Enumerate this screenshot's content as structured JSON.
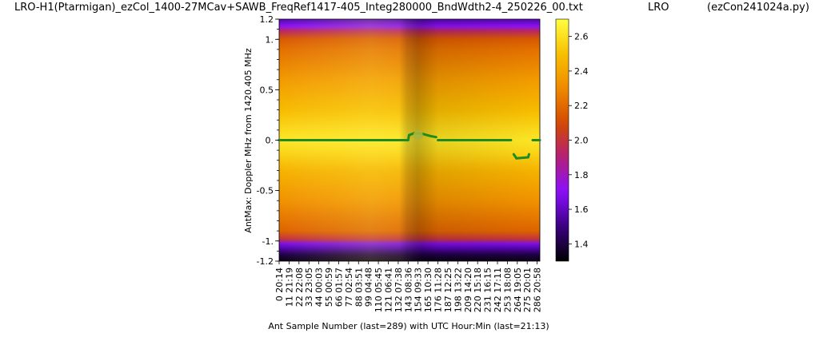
{
  "header": {
    "title": "LRO-H1(Ptarmigan)_ezCol_1400-27MCav+SAWB_FreqRef1417-405_Integ280000_BndWdth2-4_250226_00.txt",
    "site": "LRO",
    "program": "(ezCon241024a.py)"
  },
  "colors": {
    "track": "#1f8a1f",
    "marker": "#a8b43c",
    "colormap": [
      "#000000",
      "#3a0080",
      "#8a10ff",
      "#b41e78",
      "#d24a00",
      "#f08a00",
      "#f8c000",
      "#ffff40"
    ]
  },
  "chart_data": {
    "type": "heatmap",
    "colormap": "gnuplot",
    "ylabel": "AntMax:  Doppler MHz from 1420.405 MHz",
    "xlabel": "Ant Sample Number (last=289) with UTC Hour:Min (last=21:13)",
    "xlim": [
      0,
      289
    ],
    "ylim": [
      -1.2,
      1.2
    ],
    "y_ticks": [
      {
        "value": 1.2,
        "label": "1.2"
      },
      {
        "value": 1.0,
        "label": "1."
      },
      {
        "value": 0.5,
        "label": "0.5"
      },
      {
        "value": 0.0,
        "label": "0."
      },
      {
        "value": -0.5,
        "label": "-0.5"
      },
      {
        "value": -1.0,
        "label": "-1."
      },
      {
        "value": -1.2,
        "label": "-1.2"
      }
    ],
    "x_ticks": [
      {
        "sample": 0,
        "label": "0  20:14"
      },
      {
        "sample": 11,
        "label": "11  21:19"
      },
      {
        "sample": 22,
        "label": "22  22:08"
      },
      {
        "sample": 33,
        "label": "33  23:05"
      },
      {
        "sample": 44,
        "label": "44  00:03"
      },
      {
        "sample": 55,
        "label": "55  00:59"
      },
      {
        "sample": 66,
        "label": "66  01:57"
      },
      {
        "sample": 77,
        "label": "77  02:54"
      },
      {
        "sample": 88,
        "label": "88  03:51"
      },
      {
        "sample": 99,
        "label": "99  04:48"
      },
      {
        "sample": 110,
        "label": "110  05:45"
      },
      {
        "sample": 121,
        "label": "121  06:41"
      },
      {
        "sample": 132,
        "label": "132  07:38"
      },
      {
        "sample": 143,
        "label": "143  08:36"
      },
      {
        "sample": 154,
        "label": "154  09:33"
      },
      {
        "sample": 165,
        "label": "165  10:30"
      },
      {
        "sample": 176,
        "label": "176  11:28"
      },
      {
        "sample": 187,
        "label": "187  12:25"
      },
      {
        "sample": 198,
        "label": "198  13:22"
      },
      {
        "sample": 209,
        "label": "209  14:20"
      },
      {
        "sample": 220,
        "label": "220  15:18"
      },
      {
        "sample": 231,
        "label": "231  16:15"
      },
      {
        "sample": 242,
        "label": "242  17:11"
      },
      {
        "sample": 253,
        "label": "253  18:08"
      },
      {
        "sample": 264,
        "label": "264  19:05"
      },
      {
        "sample": 275,
        "label": "275  20:01"
      },
      {
        "sample": 286,
        "label": "286  20:58"
      }
    ],
    "colorbar": {
      "range": [
        1.3,
        2.7
      ],
      "ticks": [
        {
          "value": 1.4,
          "label": "1.4"
        },
        {
          "value": 1.6,
          "label": "1.6"
        },
        {
          "value": 1.8,
          "label": "1.8"
        },
        {
          "value": 2.0,
          "label": "2.0"
        },
        {
          "value": 2.2,
          "label": "2.2"
        },
        {
          "value": 2.4,
          "label": "2.4"
        },
        {
          "value": 2.6,
          "label": "2.6"
        }
      ]
    },
    "series": [
      {
        "values": [
          [
            0,
            0.0
          ],
          [
            143,
            0.0
          ],
          [
            144,
            0.05
          ],
          [
            150,
            0.07
          ],
          [
            160,
            0.06
          ],
          [
            168,
            0.04
          ],
          [
            174,
            0.03
          ],
          [
            176,
            0.0
          ],
          [
            257,
            0.0
          ],
          [
            260,
            -0.14
          ],
          [
            263,
            -0.18
          ],
          [
            276,
            -0.17
          ],
          [
            277,
            -0.14
          ],
          [
            281,
            0.0
          ],
          [
            289,
            0.0
          ]
        ]
      }
    ],
    "max_marker": {
      "sample": 154,
      "value": 0.05
    }
  }
}
